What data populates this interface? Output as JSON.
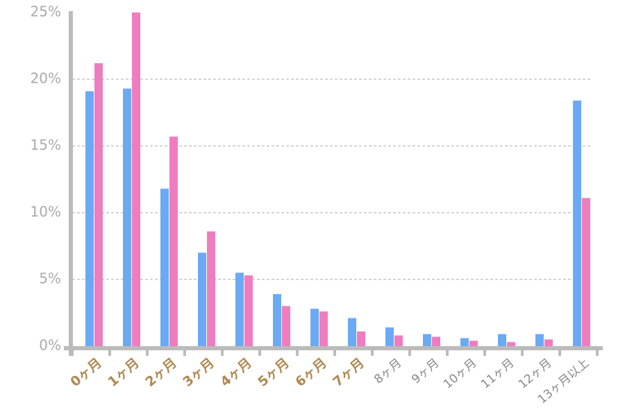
{
  "chart_data": {
    "type": "bar",
    "categories": [
      "0ヶ月",
      "1ヶ月",
      "2ヶ月",
      "3ヶ月",
      "4ヶ月",
      "5ヶ月",
      "6ヶ月",
      "7ヶ月",
      "8ヶ月",
      "9ヶ月",
      "10ヶ月",
      "11ヶ月",
      "12ヶ月",
      "13ヶ月以上"
    ],
    "category_label_colors": [
      "#b08850",
      "#b08850",
      "#b08850",
      "#b08850",
      "#b08850",
      "#b08850",
      "#b08850",
      "#b08850",
      "#888888",
      "#888888",
      "#888888",
      "#888888",
      "#888888",
      "#888888"
    ],
    "series": [
      {
        "color": "#6aaaf5",
        "values": [
          19.1,
          19.3,
          11.8,
          7.0,
          5.5,
          3.9,
          2.8,
          2.1,
          1.4,
          0.9,
          0.6,
          0.9,
          0.9,
          18.4
        ]
      },
      {
        "color": "#f07cc0",
        "values": [
          21.2,
          25.0,
          15.7,
          8.6,
          5.3,
          3.0,
          2.6,
          1.1,
          0.8,
          0.7,
          0.4,
          0.3,
          0.5,
          11.1
        ]
      }
    ],
    "ylim": [
      0,
      25
    ],
    "yticks": [
      {
        "value": 0,
        "label": "0%"
      },
      {
        "value": 5,
        "label": "5%"
      },
      {
        "value": 10,
        "label": "10%"
      },
      {
        "value": 15,
        "label": "15%"
      },
      {
        "value": 20,
        "label": "20%"
      },
      {
        "value": 25,
        "label": "25%"
      }
    ],
    "grid": true
  }
}
